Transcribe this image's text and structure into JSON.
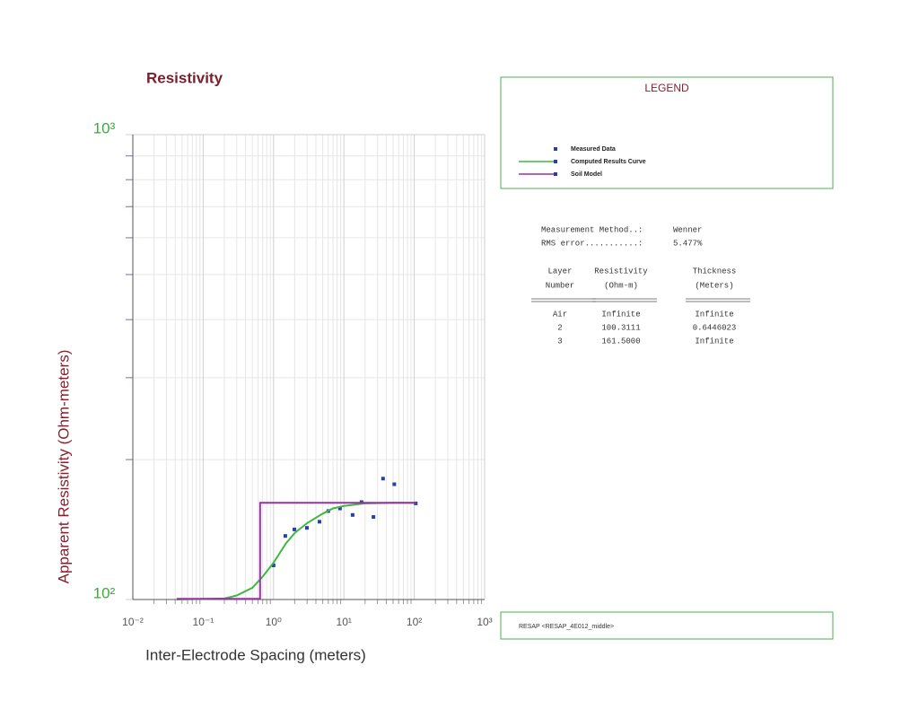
{
  "chart_data": {
    "type": "line",
    "title": "Resistivity",
    "x_label": "Inter-Electrode Spacing (meters)",
    "y_label": "Apparent Resistivity (Ohm-meters)",
    "log_x": true,
    "log_y": true,
    "grid": true,
    "xlim": [
      0.01,
      1000
    ],
    "ylim": [
      100,
      1000
    ],
    "xticks": [
      {
        "value": 0.01,
        "label": "10⁻²"
      },
      {
        "value": 0.1,
        "label": "10⁻¹"
      },
      {
        "value": 1,
        "label": "10⁰"
      },
      {
        "value": 10,
        "label": "10¹"
      },
      {
        "value": 100,
        "label": "10²"
      },
      {
        "value": 1000,
        "label": "10³"
      }
    ],
    "yticks": [
      {
        "value": 100,
        "label": "10²"
      },
      {
        "value": 1000,
        "label": "10³"
      }
    ],
    "legend_title": "LEGEND",
    "series": [
      {
        "name": "Measured Data",
        "color": "#2a3fa8",
        "style": "markers",
        "x": [
          1,
          1.47,
          1.98,
          2.98,
          4.5,
          6,
          8.8,
          13.3,
          17.8,
          26.3,
          36,
          52,
          105
        ],
        "values": [
          118.4,
          137,
          141.5,
          142.6,
          147,
          155,
          157,
          152,
          162,
          150.5,
          182,
          177,
          161
        ]
      },
      {
        "name": "Computed Results Curve",
        "color": "#3fb83f",
        "style": "line",
        "x": [
          0.042,
          0.2,
          0.3,
          0.5,
          0.7,
          1,
          1.5,
          2,
          3,
          5,
          7,
          10,
          20,
          50,
          105
        ],
        "values": [
          100,
          100.5,
          102,
          106,
          112,
          120,
          132,
          139,
          146,
          153,
          157,
          159,
          161,
          161.5,
          161.5
        ]
      },
      {
        "name": "Soil Model",
        "color": "#9b2fa8",
        "style": "line",
        "x": [
          0.042,
          0.6446023,
          0.6446023,
          105
        ],
        "values": [
          100.3111,
          100.3111,
          161.5,
          161.5
        ]
      }
    ]
  },
  "info": {
    "method_label": "Measurement Method..:",
    "method_value": "Wenner",
    "rms_label": "RMS error...........:",
    "rms_value": "5.477%",
    "headers": [
      [
        "Layer",
        "Number"
      ],
      [
        "Resistivity",
        "(Ohm-m)"
      ],
      [
        "Thickness",
        "(Meters)"
      ]
    ],
    "rows": [
      [
        "Air",
        "Infinite",
        "Infinite"
      ],
      [
        "2",
        "100.3111",
        "0.6446023"
      ],
      [
        "3",
        "161.5000",
        "Infinite"
      ]
    ],
    "footer": "RESAP <RESAP_4E012_middle>"
  }
}
